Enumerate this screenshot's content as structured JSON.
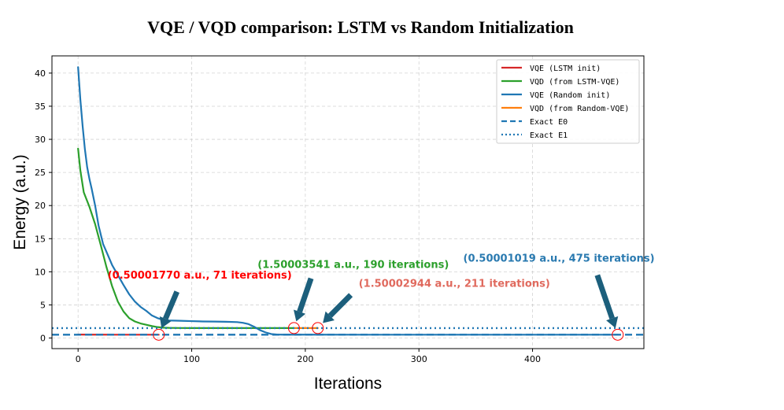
{
  "chart_data": {
    "type": "line",
    "title": "VQE / VQD comparison: LSTM vs Random Initialization",
    "xlabel": "Iterations",
    "ylabel": "Energy (a.u.)",
    "xlim": [
      -23,
      498
    ],
    "ylim": [
      -1.6,
      42.6
    ],
    "xticks": [
      0,
      100,
      200,
      300,
      400
    ],
    "yticks": [
      0,
      5,
      10,
      15,
      20,
      25,
      30,
      35,
      40
    ],
    "grid": true,
    "legend_position": "top-right",
    "series": [
      {
        "name": "VQE (LSTM init)",
        "color": "#d62728",
        "style": "solid",
        "x": [
          0,
          10,
          20,
          30,
          40,
          50,
          60,
          71
        ],
        "y": [
          0.52,
          0.51,
          0.505,
          0.503,
          0.502,
          0.5015,
          0.5005,
          0.5000177
        ]
      },
      {
        "name": "VQD (from LSTM-VQE)",
        "color": "#2ca02c",
        "style": "solid",
        "x": [
          0,
          2,
          5,
          10,
          15,
          20,
          25,
          30,
          35,
          40,
          45,
          50,
          55,
          60,
          65,
          70,
          75,
          80,
          90,
          100,
          120,
          140,
          160,
          180,
          190
        ],
        "y": [
          28.6,
          25.3,
          22.0,
          19.8,
          17.2,
          14.0,
          10.7,
          7.8,
          5.5,
          4.0,
          3.0,
          2.5,
          2.2,
          2.0,
          1.8,
          1.65,
          1.56,
          1.53,
          1.51,
          1.505,
          1.502,
          1.501,
          1.5005,
          1.5001,
          1.50003541
        ]
      },
      {
        "name": "VQE (Random init)",
        "color": "#1f77b4",
        "style": "solid",
        "x": [
          0,
          2,
          4,
          6,
          8,
          10,
          12,
          15,
          18,
          22,
          26,
          30,
          35,
          40,
          45,
          50,
          55,
          60,
          65,
          70,
          75,
          80,
          90,
          100,
          110,
          120,
          130,
          140,
          145,
          150,
          155,
          160,
          165,
          170,
          175,
          180,
          200,
          250,
          300,
          350,
          400,
          450,
          475
        ],
        "y": [
          40.9,
          36.0,
          32.0,
          28.5,
          25.8,
          24.0,
          22.5,
          20.0,
          17.0,
          14.2,
          12.6,
          11.0,
          9.5,
          8.0,
          6.6,
          5.5,
          4.7,
          4.1,
          3.4,
          3.0,
          2.75,
          2.65,
          2.6,
          2.55,
          2.5,
          2.48,
          2.45,
          2.4,
          2.3,
          2.1,
          1.7,
          1.2,
          0.85,
          0.6,
          0.53,
          0.51,
          0.505,
          0.502,
          0.501,
          0.5005,
          0.5002,
          0.5001,
          0.50001019
        ]
      },
      {
        "name": "VQD (from Random-VQE)",
        "color": "#ff7f0e",
        "style": "solid",
        "x": [
          190,
          200,
          211
        ],
        "y": [
          1.5002,
          1.5001,
          1.50002944
        ]
      },
      {
        "name": "Exact E0",
        "color": "#1f77b4",
        "style": "dashed",
        "hline": 0.5
      },
      {
        "name": "Exact E1",
        "color": "#1f77b4",
        "style": "dotted",
        "hline": 1.5
      }
    ],
    "annotations": [
      {
        "text": "(0.50001770 a.u., 71 iterations)",
        "color": "#ff0000",
        "x": 71,
        "y": 0.5000177,
        "text_x": 26,
        "text_y": 9.0,
        "arrow_from_x": 87,
        "arrow_from_y": 7.0
      },
      {
        "text": "(1.50003541 a.u., 190 iterations)",
        "color": "#2ca02c",
        "x": 190,
        "y": 1.50003541,
        "text_x": 158,
        "text_y": 10.6,
        "arrow_from_x": 205,
        "arrow_from_y": 9.0
      },
      {
        "text": "(1.50002944 a.u., 211 iterations)",
        "color": "#e06a5e",
        "x": 211,
        "y": 1.50002944,
        "text_x": 247,
        "text_y": 7.7,
        "arrow_from_x": 240,
        "arrow_from_y": 6.5
      },
      {
        "text": "(0.50001019 a.u., 475 iterations)",
        "color": "#2a7ab0",
        "x": 475,
        "y": 0.50001019,
        "text_x": 339,
        "text_y": 11.5,
        "arrow_from_x": 457,
        "arrow_from_y": 9.5
      }
    ]
  }
}
